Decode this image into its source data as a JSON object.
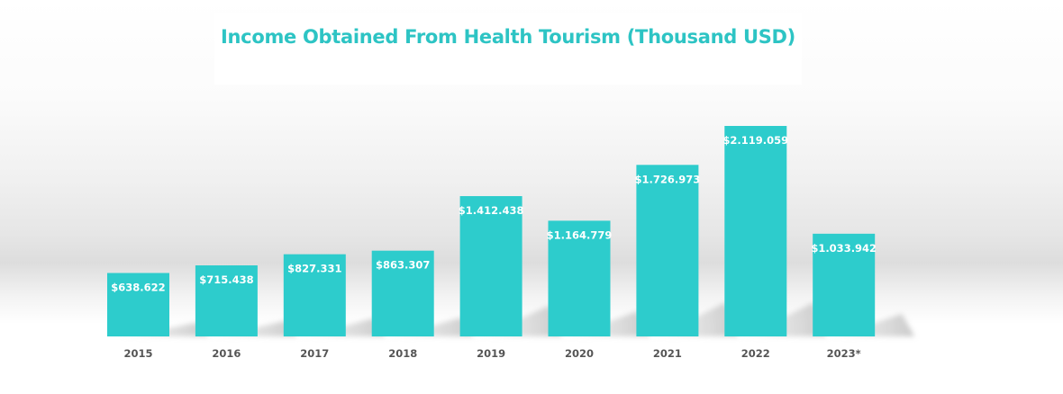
{
  "chart_data": {
    "type": "bar",
    "title": "Income Obtained From Health Tourism (Thousand USD)",
    "categories": [
      "2015",
      "2016",
      "2017",
      "2018",
      "2019",
      "2020",
      "2021",
      "2022",
      "2023*"
    ],
    "values": [
      638622,
      715438,
      827331,
      863307,
      1412438,
      1164779,
      1726973,
      2119059,
      1033942
    ],
    "value_labels": [
      "$638.622",
      "$715.438",
      "$827.331",
      "$863.307",
      "$1.412.438",
      "$1.164.779",
      "$1.726.973",
      "$2.119.059",
      "$1.033.942"
    ],
    "xlabel": "",
    "ylabel": "",
    "ylim": [
      0,
      2119059
    ],
    "grid": false,
    "legend": "none",
    "bar_color": "#2dcccc",
    "title_color": "#2dc4c4",
    "label_color": "#ffffff",
    "tick_color": "#555555"
  }
}
